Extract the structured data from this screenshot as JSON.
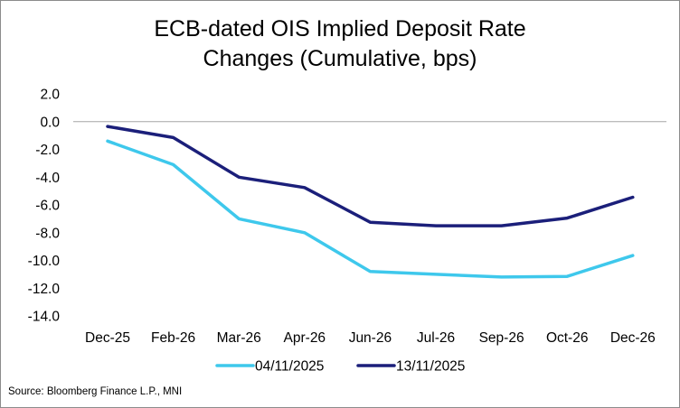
{
  "chart_data": {
    "type": "line",
    "title": [
      "ECB-dated OIS Implied Deposit Rate",
      "Changes (Cumulative, bps)"
    ],
    "categories": [
      "Dec-25",
      "Feb-26",
      "Mar-26",
      "Apr-26",
      "Jun-26",
      "Jul-26",
      "Sep-26",
      "Oct-26",
      "Dec-26"
    ],
    "series": [
      {
        "name": "04/11/2025",
        "color": "#3ec8ec",
        "values": [
          -1.4,
          -3.1,
          -7.0,
          -8.0,
          -10.8,
          -11.0,
          -11.2,
          -11.15,
          -9.65
        ]
      },
      {
        "name": "13/11/2025",
        "color": "#1b1f7a",
        "values": [
          -0.35,
          -1.15,
          -4.0,
          -4.75,
          -7.25,
          -7.5,
          -7.5,
          -6.95,
          -5.45
        ]
      }
    ],
    "yticks": [
      "2.0",
      "0.0",
      "-2.0",
      "-4.0",
      "-6.0",
      "-8.0",
      "-10.0",
      "-12.0",
      "-14.0"
    ],
    "ylim": [
      -14,
      2
    ],
    "xlabel": "",
    "ylabel": "",
    "grid": false,
    "legend_position": "bottom",
    "source": "Source: Bloomberg Finance L.P., MNI"
  }
}
